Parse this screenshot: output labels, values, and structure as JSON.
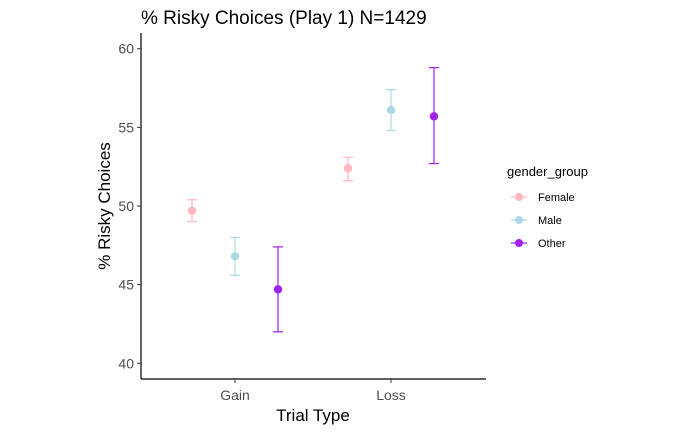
{
  "chart_data": {
    "type": "scatter",
    "title": "% Risky Choices (Play 1) N=1429",
    "xlabel": "Trial Type",
    "ylabel": "% Risky Choices",
    "categories": [
      "Gain",
      "Loss"
    ],
    "ylim": [
      39,
      61
    ],
    "yticks": [
      40,
      45,
      50,
      55,
      60
    ],
    "grid": false,
    "error_bars": true,
    "legend": {
      "title": "gender_group",
      "position": "right"
    },
    "series": [
      {
        "name": "Female",
        "color": "#ffb6c1",
        "values": [
          49.7,
          52.4
        ],
        "lower": [
          49.0,
          51.6
        ],
        "upper": [
          50.4,
          53.1
        ]
      },
      {
        "name": "Male",
        "color": "#add8e6",
        "values": [
          46.8,
          56.1
        ],
        "lower": [
          45.6,
          54.8
        ],
        "upper": [
          48.0,
          57.4
        ]
      },
      {
        "name": "Other",
        "color": "#a020f0",
        "values": [
          44.7,
          55.7
        ],
        "lower": [
          42.0,
          52.7
        ],
        "upper": [
          47.4,
          58.8
        ]
      }
    ]
  }
}
